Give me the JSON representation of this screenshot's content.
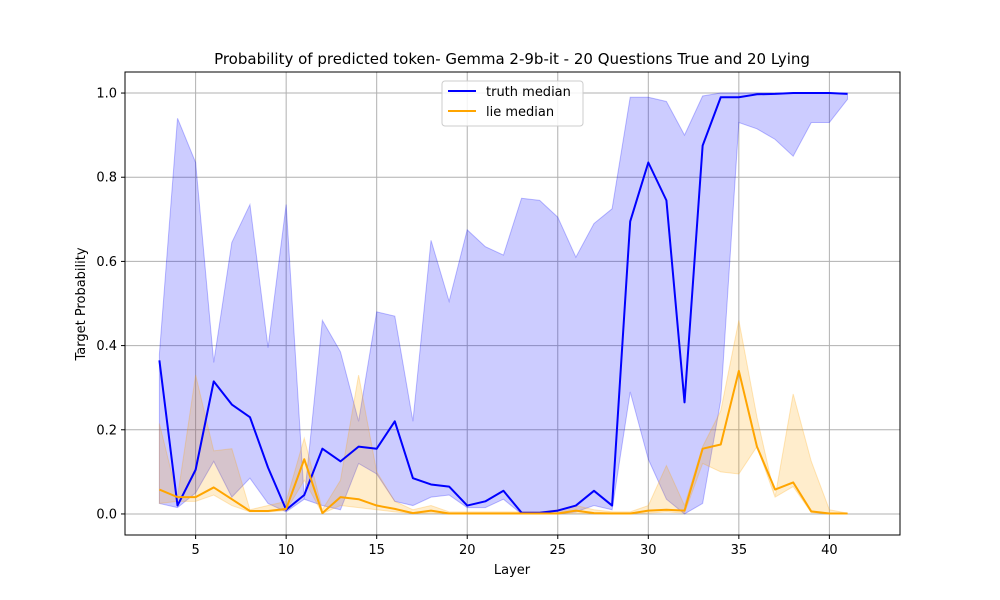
{
  "chart_data": {
    "type": "line",
    "title": "Probability of predicted token- Gemma 2-9b-it - 20 Questions True and 20 Lying",
    "xlabel": "Layer",
    "ylabel": "Target Probability",
    "xlim": [
      -0.0,
      2
    ],
    "x_range": [
      -0.0,
      0
    ],
    "xlim_data": [
      1.1,
      43.9
    ],
    "ylim": [
      -0.05,
      1.05
    ],
    "xticks": [
      5,
      10,
      15,
      20,
      25,
      30,
      35,
      40
    ],
    "yticks": [
      0.0,
      0.2,
      0.4,
      0.6,
      0.8,
      1.0
    ],
    "xtick_labels": [
      "5",
      "10",
      "15",
      "20",
      "25",
      "30",
      "35",
      "40"
    ],
    "ytick_labels": [
      "0.0",
      "0.2",
      "0.4",
      "0.6",
      "0.8",
      "1.0"
    ],
    "grid": true,
    "legend_position": "top-center",
    "x": [
      3,
      4,
      5,
      6,
      7,
      8,
      9,
      10,
      11,
      12,
      13,
      14,
      15,
      16,
      17,
      18,
      19,
      20,
      21,
      22,
      23,
      24,
      25,
      26,
      27,
      28,
      29,
      30,
      31,
      32,
      33,
      34,
      35,
      36,
      37,
      38,
      39,
      40,
      41
    ],
    "series": [
      {
        "name": "truth median",
        "color": "#0000ff",
        "band_color": "#0000ff",
        "values": [
          0.365,
          0.02,
          0.105,
          0.315,
          0.26,
          0.23,
          0.11,
          0.01,
          0.045,
          0.155,
          0.125,
          0.16,
          0.155,
          0.22,
          0.085,
          0.07,
          0.065,
          0.02,
          0.03,
          0.055,
          0.003,
          0.003,
          0.008,
          0.02,
          0.055,
          0.02,
          0.695,
          0.835,
          0.745,
          0.265,
          0.875,
          0.99,
          0.99,
          0.997,
          0.998,
          1.0,
          1.0,
          1.0,
          0.998
        ],
        "band_upper": [
          0.38,
          0.94,
          0.835,
          0.36,
          0.645,
          0.735,
          0.395,
          0.735,
          0.035,
          0.46,
          0.385,
          0.22,
          0.48,
          0.47,
          0.22,
          0.65,
          0.505,
          0.675,
          0.635,
          0.615,
          0.75,
          0.745,
          0.705,
          0.61,
          0.69,
          0.725,
          0.99,
          0.99,
          0.98,
          0.9,
          0.993,
          1.0,
          1.0,
          1.0,
          1.0,
          1.0,
          1.0,
          1.0,
          1.0
        ],
        "band_lower": [
          0.025,
          0.015,
          0.05,
          0.125,
          0.04,
          0.085,
          0.025,
          0.005,
          0.035,
          0.02,
          0.01,
          0.12,
          0.095,
          0.03,
          0.02,
          0.04,
          0.045,
          0.015,
          0.015,
          0.035,
          0.0,
          0.0,
          0.0,
          0.005,
          0.02,
          0.01,
          0.29,
          0.13,
          0.035,
          0.0,
          0.025,
          0.27,
          0.93,
          0.915,
          0.89,
          0.85,
          0.93,
          0.93,
          0.985
        ]
      },
      {
        "name": "lie median",
        "color": "#ffa500",
        "band_color": "#ffa500",
        "values": [
          0.058,
          0.04,
          0.04,
          0.063,
          0.035,
          0.007,
          0.007,
          0.012,
          0.13,
          0.002,
          0.04,
          0.035,
          0.02,
          0.012,
          0.002,
          0.008,
          0.001,
          0.001,
          0.001,
          0.001,
          0.001,
          0.001,
          0.001,
          0.008,
          0.002,
          0.001,
          0.001,
          0.008,
          0.01,
          0.008,
          0.155,
          0.165,
          0.34,
          0.16,
          0.058,
          0.075,
          0.006,
          0.001,
          0.001
        ],
        "band_upper": [
          0.215,
          0.04,
          0.33,
          0.15,
          0.155,
          0.01,
          0.02,
          0.03,
          0.18,
          0.01,
          0.08,
          0.33,
          0.1,
          0.03,
          0.01,
          0.02,
          0.005,
          0.005,
          0.005,
          0.005,
          0.005,
          0.005,
          0.01,
          0.02,
          0.01,
          0.005,
          0.005,
          0.02,
          0.115,
          0.02,
          0.16,
          0.245,
          0.46,
          0.23,
          0.04,
          0.285,
          0.125,
          0.01,
          0.002
        ],
        "band_lower": [
          0.025,
          0.03,
          0.03,
          0.045,
          0.02,
          0.005,
          0.005,
          0.008,
          0.08,
          0.001,
          0.02,
          0.015,
          0.01,
          0.005,
          0.001,
          0.002,
          0.0,
          0.0,
          0.0,
          0.0,
          0.0,
          0.0,
          0.0,
          0.002,
          0.0,
          0.0,
          0.0,
          0.002,
          0.005,
          0.002,
          0.12,
          0.1,
          0.095,
          0.16,
          0.04,
          0.065,
          0.003,
          0.0,
          0.0
        ]
      }
    ]
  }
}
